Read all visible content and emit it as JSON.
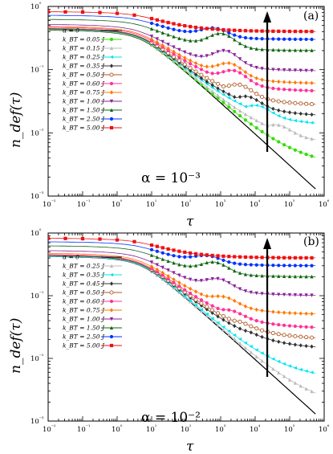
{
  "chart_data": [
    {
      "type": "line",
      "panel_label": "(a)",
      "annotation": "α = 10⁻³",
      "xlabel": "τ",
      "ylabel": "n_def(τ)",
      "xscale": "log",
      "yscale": "log",
      "xlim": [
        0.01,
        1000000
      ],
      "ylim": [
        0.001,
        1
      ],
      "xticks": [
        "10⁻²",
        "10⁻¹",
        "10⁰",
        "10¹",
        "10²",
        "10³",
        "10⁴",
        "10⁵",
        "10⁶"
      ],
      "yticks": [
        "10⁻³",
        "10⁻²",
        "10⁻¹",
        "10⁰"
      ],
      "legend_position": "left",
      "arrow": "upward arrow near τ≈2×10⁴ indicating increasing k_BT",
      "series": [
        {
          "name": "α = 0",
          "color": "#000000",
          "marker": "none",
          "final": 0.0009,
          "bump_pos": 0,
          "bump_height": 0
        },
        {
          "name": "k_BT = 0.05 J",
          "color": "#33dd00",
          "marker": "circle",
          "final": 0.0028,
          "bump_pos": 0,
          "bump_height": 0
        },
        {
          "name": "k_BT = 0.15 J",
          "color": "#bbbbbb",
          "marker": "triangle-up",
          "final": 0.0065,
          "bump_pos": 3.2,
          "bump_height": 0.3
        },
        {
          "name": "k_BT = 0.25 J",
          "color": "#00e5ee",
          "marker": "triangle-left",
          "final": 0.013,
          "bump_pos": 2.6,
          "bump_height": 0.32
        },
        {
          "name": "k_BT = 0.35 J",
          "color": "#333333",
          "marker": "diamond",
          "final": 0.018,
          "bump_pos": 2.3,
          "bump_height": 0.33
        },
        {
          "name": "k_BT = 0.50 J",
          "color": "#b05a28",
          "marker": "circle-open",
          "final": 0.027,
          "bump_pos": 2.1,
          "bump_height": 0.34
        },
        {
          "name": "k_BT = 0.60 J",
          "color": "#ff3399",
          "marker": "circle",
          "final": 0.045,
          "bump_pos": 2.0,
          "bump_height": 0.32
        },
        {
          "name": "k_BT = 0.75 J",
          "color": "#ff7700",
          "marker": "diamond",
          "final": 0.06,
          "bump_pos": 1.9,
          "bump_height": 0.3
        },
        {
          "name": "k_BT = 1.00 J",
          "color": "#882299",
          "marker": "triangle-down",
          "final": 0.095,
          "bump_pos": 1.8,
          "bump_height": 0.3
        },
        {
          "name": "k_BT = 1.50 J",
          "color": "#116611",
          "marker": "triangle-up",
          "final": 0.2,
          "bump_pos": 1.7,
          "bump_height": 0.25
        },
        {
          "name": "k_BT = 2.50 J",
          "color": "#0033ff",
          "marker": "circle",
          "final": 0.3,
          "bump_pos": 1.5,
          "bump_height": 0.15
        },
        {
          "name": "k_BT = 5.00 J",
          "color": "#ee1111",
          "marker": "square",
          "final": 0.4,
          "bump_pos": 0,
          "bump_height": 0
        }
      ]
    },
    {
      "type": "line",
      "panel_label": "(b)",
      "annotation": "α = 10⁻²",
      "xlabel": "τ",
      "ylabel": "n_def(τ)",
      "xscale": "log",
      "yscale": "log",
      "xlim": [
        0.01,
        1000000
      ],
      "ylim": [
        0.001,
        1
      ],
      "xticks": [
        "10⁻²",
        "10⁻¹",
        "10⁰",
        "10¹",
        "10²",
        "10³",
        "10⁴",
        "10⁵",
        "10⁶"
      ],
      "yticks": [
        "10⁻³",
        "10⁻²",
        "10⁻¹",
        "10⁰"
      ],
      "legend_position": "left",
      "arrow": "upward arrow near τ≈2×10⁴ indicating increasing k_BT",
      "series": [
        {
          "name": "α = 0",
          "color": "#000000",
          "marker": "none",
          "final": 0.0009,
          "bump_pos": 0,
          "bump_height": 0
        },
        {
          "name": "k_BT = 0.25 J",
          "color": "#bbbbbb",
          "marker": "triangle-up",
          "final": 0.0015,
          "bump_pos": 0,
          "bump_height": 0
        },
        {
          "name": "k_BT = 0.35 J",
          "color": "#00e5ee",
          "marker": "triangle-left",
          "final": 0.0045,
          "bump_pos": 2.3,
          "bump_height": 0.12
        },
        {
          "name": "k_BT = 0.45 J",
          "color": "#333333",
          "marker": "diamond",
          "final": 0.014,
          "bump_pos": 2.0,
          "bump_height": 0.22
        },
        {
          "name": "k_BT = 0.50 J",
          "color": "#b05a28",
          "marker": "circle-open",
          "final": 0.02,
          "bump_pos": 1.9,
          "bump_height": 0.22
        },
        {
          "name": "k_BT = 0.60 J",
          "color": "#ff3399",
          "marker": "circle",
          "final": 0.03,
          "bump_pos": 1.8,
          "bump_height": 0.22
        },
        {
          "name": "k_BT = 0.75 J",
          "color": "#ff7700",
          "marker": "diamond",
          "final": 0.05,
          "bump_pos": 1.7,
          "bump_height": 0.22
        },
        {
          "name": "k_BT = 1.00 J",
          "color": "#882299",
          "marker": "triangle-down",
          "final": 0.1,
          "bump_pos": 1.6,
          "bump_height": 0.22
        },
        {
          "name": "k_BT = 1.50 J",
          "color": "#116611",
          "marker": "triangle-up",
          "final": 0.2,
          "bump_pos": 1.5,
          "bump_height": 0.2
        },
        {
          "name": "k_BT = 2.50 J",
          "color": "#0033ff",
          "marker": "circle",
          "final": 0.3,
          "bump_pos": 1.3,
          "bump_height": 0.12
        },
        {
          "name": "k_BT = 5.00 J",
          "color": "#ee1111",
          "marker": "square",
          "final": 0.4,
          "bump_pos": 0,
          "bump_height": 0
        }
      ]
    }
  ]
}
